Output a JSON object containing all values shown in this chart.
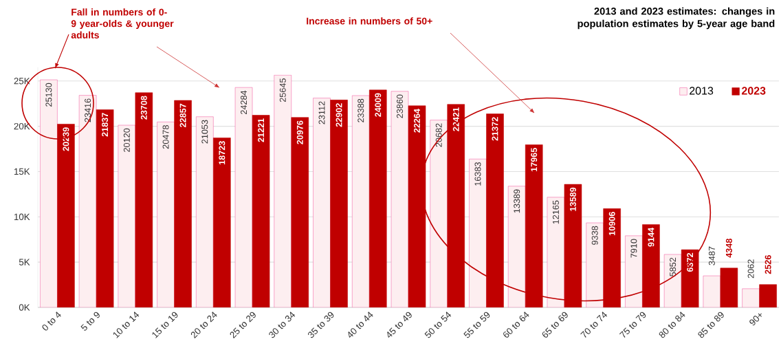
{
  "chart_data": {
    "type": "bar",
    "title": "2013 and 2023 estimates: changes in population estimates by 5-year age band",
    "categories": [
      "0 to 4",
      "5 to 9",
      "10 to 14",
      "15 to 19",
      "20 to 24",
      "25 to 29",
      "30 to 34",
      "35 to 39",
      "40 to 44",
      "45 to 49",
      "50 to 54",
      "55 to 59",
      "60 to 64",
      "65 to 69",
      "70 to 74",
      "75 to 79",
      "80 to 84",
      "85 to 89",
      "90+"
    ],
    "series": [
      {
        "name": "2013",
        "color": "#fdeef0",
        "values": [
          25130,
          23416,
          20120,
          20478,
          21053,
          24284,
          25645,
          23112,
          23388,
          23860,
          20682,
          16383,
          13389,
          12165,
          9338,
          7910,
          5852,
          3487,
          2062
        ]
      },
      {
        "name": "2023",
        "color": "#c00000",
        "values": [
          20239,
          21837,
          23708,
          22857,
          18723,
          21221,
          20976,
          22902,
          24009,
          22264,
          22421,
          21372,
          17965,
          13589,
          10906,
          9144,
          6372,
          4348,
          2526
        ]
      }
    ],
    "ylim": [
      0,
      26500
    ],
    "yticks": [
      {
        "value": 0,
        "label": "0K"
      },
      {
        "value": 5000,
        "label": "5K"
      },
      {
        "value": 10000,
        "label": "10K"
      },
      {
        "value": 15000,
        "label": "15K"
      },
      {
        "value": 20000,
        "label": "20K"
      },
      {
        "value": 25000,
        "label": "25K"
      }
    ],
    "grid": "y",
    "legend": "top right",
    "data_labels": true,
    "annotations": [
      "Fall in numbers of 0-9 year-olds & younger adults",
      "Increase in numbers of 50+"
    ]
  }
}
